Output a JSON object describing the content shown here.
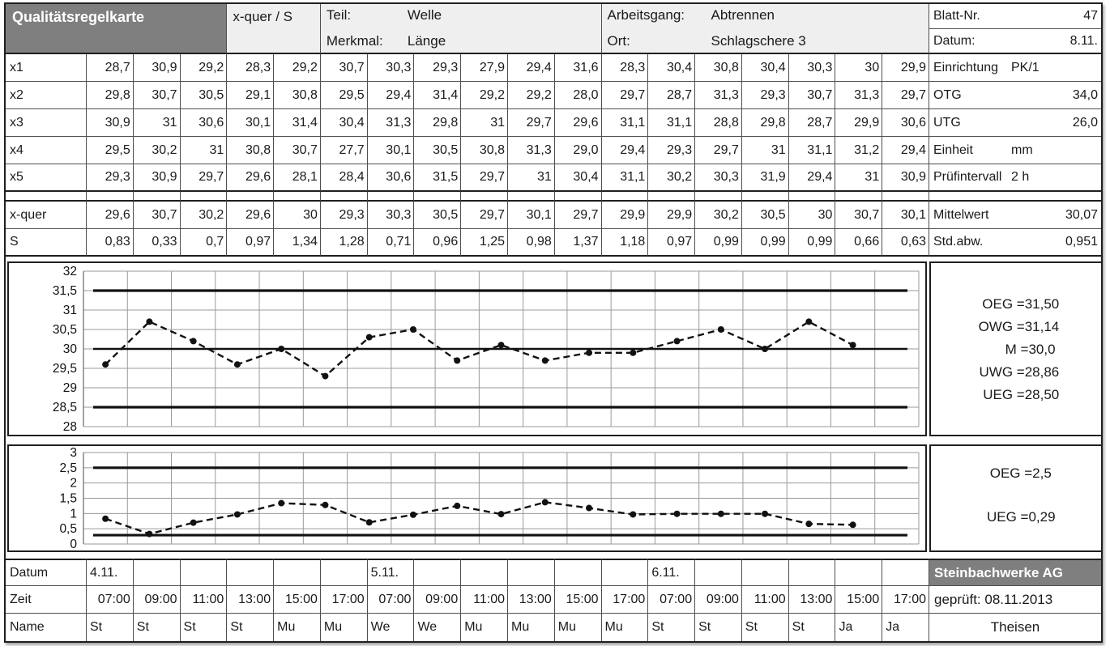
{
  "header": {
    "title": "Qualitätsregelkarte",
    "card_type": "x-quer / S",
    "part_label": "Teil:",
    "part_value": "Welle",
    "characteristic_label": "Merkmal:",
    "characteristic_value": "Länge",
    "operation_label": "Arbeitsgang:",
    "operation_value": "Abtrennen",
    "location_label": "Ort:",
    "location_value": "Schlagschere 3",
    "sheet_label": "Blatt-Nr.",
    "sheet_value": "47",
    "date_label": "Datum:",
    "date_value": "8.11."
  },
  "samples": {
    "rows": [
      {
        "label": "x1",
        "values": [
          "28,7",
          "30,9",
          "29,2",
          "28,3",
          "29,2",
          "30,7",
          "30,3",
          "29,3",
          "27,9",
          "29,4",
          "31,6",
          "28,3",
          "30,4",
          "30,8",
          "30,4",
          "30,3",
          "30",
          "29,9"
        ]
      },
      {
        "label": "x2",
        "values": [
          "29,8",
          "30,7",
          "30,5",
          "29,1",
          "30,8",
          "29,5",
          "29,4",
          "31,4",
          "29,2",
          "29,2",
          "28,0",
          "29,7",
          "28,7",
          "31,3",
          "29,3",
          "30,7",
          "31,3",
          "29,7"
        ]
      },
      {
        "label": "x3",
        "values": [
          "30,9",
          "31",
          "30,6",
          "30,1",
          "31,4",
          "30,4",
          "31,3",
          "29,8",
          "31",
          "29,7",
          "29,6",
          "31,1",
          "31,1",
          "28,8",
          "29,8",
          "28,7",
          "29,9",
          "30,6"
        ]
      },
      {
        "label": "x4",
        "values": [
          "29,5",
          "30,2",
          "31",
          "30,8",
          "30,7",
          "27,7",
          "30,1",
          "30,5",
          "30,8",
          "31,3",
          "29,0",
          "29,4",
          "29,3",
          "29,7",
          "31",
          "31,1",
          "31,2",
          "29,4"
        ]
      },
      {
        "label": "x5",
        "values": [
          "29,3",
          "30,9",
          "29,7",
          "29,6",
          "28,1",
          "28,4",
          "30,6",
          "31,5",
          "29,7",
          "31",
          "30,4",
          "31,1",
          "30,2",
          "30,3",
          "31,9",
          "29,4",
          "31",
          "30,9"
        ]
      }
    ],
    "info": [
      {
        "label": "Einrichtung",
        "value": "PK/1"
      },
      {
        "label": "OTG",
        "value": "34,0"
      },
      {
        "label": "UTG",
        "value": "26,0"
      },
      {
        "label": "Einheit",
        "value": "mm"
      },
      {
        "label": "Prüfintervall",
        "value": "2 h"
      }
    ]
  },
  "stats": {
    "rows": [
      {
        "label": "x-quer",
        "values": [
          "29,6",
          "30,7",
          "30,2",
          "29,6",
          "30",
          "29,3",
          "30,3",
          "30,5",
          "29,7",
          "30,1",
          "29,7",
          "29,9",
          "29,9",
          "30,2",
          "30,5",
          "30",
          "30,7",
          "30,1"
        ]
      },
      {
        "label": "S",
        "values": [
          "0,83",
          "0,33",
          "0,7",
          "0,97",
          "1,34",
          "1,28",
          "0,71",
          "0,96",
          "1,25",
          "0,98",
          "1,37",
          "1,18",
          "0,97",
          "0,99",
          "0,99",
          "0,99",
          "0,66",
          "0,63"
        ]
      }
    ],
    "info": [
      {
        "label": "Mittelwert",
        "value": "30,07"
      },
      {
        "label": "Std.abw.",
        "value": "0,951"
      }
    ]
  },
  "chart_data": [
    {
      "type": "line",
      "name": "xbar-control-chart",
      "series": [
        {
          "name": "x-quer",
          "values": [
            29.6,
            30.7,
            30.2,
            29.6,
            30,
            29.3,
            30.3,
            30.5,
            29.7,
            30.1,
            29.7,
            29.9,
            29.9,
            30.2,
            30.5,
            30,
            30.7,
            30.1
          ]
        }
      ],
      "ylim": [
        28,
        32
      ],
      "ytick_step": 0.5,
      "yticklabels": [
        "32",
        "31,5",
        "31",
        "30,5",
        "30",
        "29,5",
        "29",
        "28,5",
        "28"
      ],
      "grid": true,
      "legend_position": "none",
      "limit_lines": [
        {
          "label": "OEG",
          "value": 31.5
        },
        {
          "label": "M",
          "value": 30
        },
        {
          "label": "UEG",
          "value": 28.5
        }
      ],
      "side_labels": [
        {
          "name": "OEG =",
          "value": "31,50"
        },
        {
          "name": "OWG =",
          "value": "31,14"
        },
        {
          "name": "M =",
          "value": "30,0"
        },
        {
          "name": "UWG =",
          "value": "28,86"
        },
        {
          "name": "UEG =",
          "value": "28,50"
        }
      ]
    },
    {
      "type": "line",
      "name": "s-control-chart",
      "series": [
        {
          "name": "S",
          "values": [
            0.83,
            0.33,
            0.7,
            0.97,
            1.34,
            1.28,
            0.71,
            0.96,
            1.25,
            0.98,
            1.37,
            1.18,
            0.97,
            0.99,
            0.99,
            0.99,
            0.66,
            0.63
          ]
        }
      ],
      "ylim": [
        0,
        3
      ],
      "ytick_step": 0.5,
      "yticklabels": [
        "3",
        "2,5",
        "2",
        "1,5",
        "1",
        "0,5",
        "0"
      ],
      "grid": true,
      "legend_position": "none",
      "limit_lines": [
        {
          "label": "OEG",
          "value": 2.5
        },
        {
          "label": "UEG",
          "value": 0.29
        }
      ],
      "side_labels": [
        {
          "name": "OEG =",
          "value": "2,5"
        },
        {
          "name": "UEG =",
          "value": "0,29"
        }
      ]
    }
  ],
  "footer": {
    "rows": [
      {
        "label": "Datum",
        "values": [
          "4.11.",
          "",
          "",
          "",
          "",
          "",
          "5.11.",
          "",
          "",
          "",
          "",
          "",
          "6.11.",
          "",
          "",
          "",
          "",
          ""
        ]
      },
      {
        "label": "Zeit",
        "values": [
          "07:00",
          "09:00",
          "11:00",
          "13:00",
          "15:00",
          "17:00",
          "07:00",
          "09:00",
          "11:00",
          "13:00",
          "15:00",
          "17:00",
          "07:00",
          "09:00",
          "11:00",
          "13:00",
          "15:00",
          "17:00"
        ]
      },
      {
        "label": "Name",
        "values": [
          "St",
          "St",
          "St",
          "St",
          "Mu",
          "Mu",
          "We",
          "We",
          "Mu",
          "Mu",
          "Mu",
          "Mu",
          "St",
          "St",
          "St",
          "St",
          "Ja",
          "Ja"
        ]
      }
    ],
    "company": "Steinbachwerke AG",
    "checked": "geprüft: 08.11.2013",
    "signature": "Theisen"
  },
  "colors": {
    "dark_header": "#7f7f7f",
    "light_fill": "#efefef",
    "block_border": "#1f1f1f",
    "cell_border": "#4f4f4f",
    "grid_line": "#9a9a9a",
    "data_line": "#111111"
  }
}
